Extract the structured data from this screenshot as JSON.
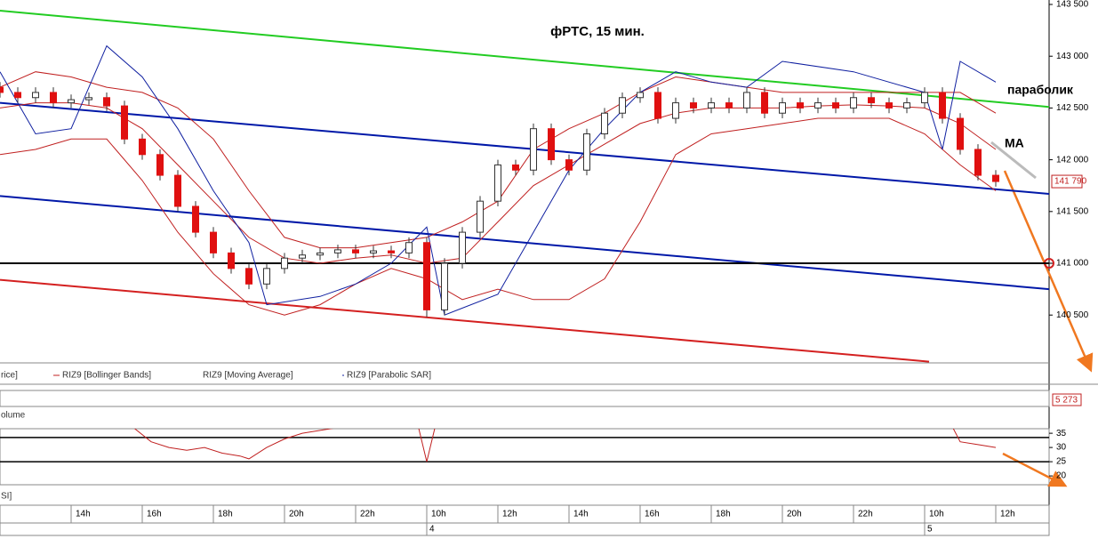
{
  "chart_data": {
    "type": "candlestick",
    "title": "фРТС,  15 мин.",
    "annotations": [
      "параболик",
      "MA"
    ],
    "xlim": [
      0,
      118
    ],
    "ylim": [
      140038,
      143500
    ],
    "yticks": [
      {
        "value": 143500,
        "label": "143 500"
      },
      {
        "value": 143000,
        "label": "143 000"
      },
      {
        "value": 142500,
        "label": "142 500"
      },
      {
        "value": 142000,
        "label": "142 000"
      },
      {
        "value": 141500,
        "label": "141 500"
      },
      {
        "value": 141000,
        "label": "141 000"
      },
      {
        "value": 140500,
        "label": "140 500"
      }
    ],
    "xticks": [
      {
        "value": 8,
        "label": "14h"
      },
      {
        "value": 16,
        "label": "16h"
      },
      {
        "value": 24,
        "label": "18h"
      },
      {
        "value": 32,
        "label": "20h"
      },
      {
        "value": 40,
        "label": "22h"
      },
      {
        "value": 48,
        "label": "10h"
      },
      {
        "value": 56,
        "label": "12h"
      },
      {
        "value": 64,
        "label": "14h"
      },
      {
        "value": 72,
        "label": "16h"
      },
      {
        "value": 80,
        "label": "18h"
      },
      {
        "value": 88,
        "label": "20h"
      },
      {
        "value": 96,
        "label": "22h"
      },
      {
        "value": 104,
        "label": "10h"
      },
      {
        "value": 112,
        "label": "12h"
      }
    ],
    "date_ticks": [
      {
        "value": 48,
        "label": "4"
      },
      {
        "value": 104,
        "label": "5"
      }
    ],
    "candles": {
      "x": [
        0,
        2,
        4,
        6,
        8,
        10,
        12,
        14,
        16,
        18,
        20,
        22,
        24,
        26,
        28,
        30,
        32,
        34,
        36,
        38,
        40,
        42,
        44,
        46,
        48,
        50,
        52,
        54,
        56,
        58,
        60,
        62,
        64,
        66,
        68,
        70,
        72,
        74,
        76,
        78,
        80,
        82,
        84,
        86,
        88,
        90,
        92,
        94,
        96,
        98,
        100,
        102,
        104,
        106,
        108,
        110,
        112
      ],
      "open": [
        142700,
        142650,
        142600,
        142650,
        142550,
        142580,
        142600,
        142520,
        142200,
        142050,
        141850,
        141550,
        141300,
        141100,
        140950,
        140800,
        140950,
        141050,
        141080,
        141100,
        141130,
        141100,
        141120,
        141100,
        141200,
        140550,
        141000,
        141300,
        141600,
        141950,
        141900,
        142300,
        142000,
        141900,
        142250,
        142450,
        142600,
        142650,
        142400,
        142550,
        142500,
        142550,
        142500,
        142650,
        142450,
        142550,
        142500,
        142550,
        142500,
        142600,
        142550,
        142500,
        142550,
        142650,
        142400,
        142100,
        141850
      ],
      "high": [
        142750,
        142700,
        142700,
        142700,
        142630,
        142650,
        142650,
        142570,
        142250,
        142100,
        141900,
        141600,
        141350,
        141150,
        141000,
        141000,
        141100,
        141130,
        141150,
        141180,
        141180,
        141170,
        141170,
        141250,
        141250,
        141050,
        141350,
        141650,
        142000,
        142000,
        142350,
        142350,
        142050,
        142300,
        142500,
        142650,
        142700,
        142700,
        142600,
        142600,
        142600,
        142600,
        142700,
        142700,
        142600,
        142600,
        142600,
        142600,
        142650,
        142650,
        142600,
        142600,
        142700,
        142700,
        142450,
        142150,
        141900
      ],
      "low": [
        142600,
        142550,
        142550,
        142500,
        142500,
        142530,
        142470,
        142150,
        142000,
        141800,
        141500,
        141250,
        141050,
        140900,
        140750,
        140750,
        140900,
        141000,
        141030,
        141050,
        141050,
        141050,
        141050,
        141050,
        140480,
        140500,
        140950,
        141250,
        141550,
        141850,
        141850,
        141950,
        141850,
        141850,
        142200,
        142400,
        142550,
        142350,
        142350,
        142450,
        142450,
        142450,
        142450,
        142400,
        142400,
        142450,
        142450,
        142450,
        142450,
        142500,
        142450,
        142450,
        142500,
        142350,
        142050,
        141800,
        141740
      ],
      "close": [
        142650,
        142600,
        142650,
        142550,
        142580,
        142600,
        142520,
        142200,
        142050,
        141850,
        141550,
        141300,
        141100,
        140950,
        140800,
        140950,
        141050,
        141080,
        141100,
        141130,
        141100,
        141120,
        141100,
        141200,
        140550,
        141000,
        141300,
        141600,
        141950,
        141900,
        142300,
        142000,
        141900,
        142250,
        142450,
        142600,
        142650,
        142400,
        142550,
        142500,
        142550,
        142500,
        142650,
        142450,
        142550,
        142500,
        142550,
        142500,
        142600,
        142550,
        142500,
        142550,
        142650,
        142400,
        142100,
        141850,
        141790
      ],
      "up_color": "#ffffff",
      "down_color": "#e01010"
    },
    "trend_lines": [
      {
        "color": "#22cc22",
        "x": [
          0,
          118
        ],
        "values": [
          143440,
          142510
        ]
      },
      {
        "color": "#0018a8",
        "x": [
          0,
          118
        ],
        "values": [
          142550,
          141670
        ]
      },
      {
        "color": "#0018a8",
        "x": [
          0,
          118
        ],
        "values": [
          141650,
          140750
        ]
      },
      {
        "color": "#d42020",
        "x": [
          0,
          104.5
        ],
        "values": [
          140840,
          140050
        ]
      },
      {
        "color": "#000000",
        "x": [
          0,
          118
        ],
        "values": [
          141000,
          141000
        ]
      }
    ],
    "price_legend": "rice]",
    "series": [
      {
        "name": "RIZ9 [Bollinger Bands]",
        "color": "#c02020",
        "x": [
          0,
          4,
          8,
          12,
          16,
          20,
          24,
          28,
          32,
          36,
          40,
          44,
          48,
          52,
          56,
          60,
          64,
          68,
          72,
          76,
          80,
          84,
          88,
          92,
          96,
          100,
          104,
          108,
          112
        ],
        "upper": [
          142700,
          142850,
          142800,
          142700,
          142650,
          142500,
          142200,
          141700,
          141250,
          141150,
          141150,
          141200,
          141250,
          141400,
          141600,
          142100,
          142300,
          142450,
          142650,
          142800,
          142750,
          142700,
          142650,
          142650,
          142650,
          142650,
          142650,
          142650,
          142450
        ],
        "lower": [
          142050,
          142100,
          142200,
          142200,
          141800,
          141300,
          140900,
          140600,
          140500,
          140600,
          140800,
          140950,
          140850,
          140650,
          140750,
          140650,
          140650,
          140850,
          141400,
          142050,
          142250,
          142300,
          142350,
          142400,
          142400,
          142400,
          142250,
          141950,
          141700
        ]
      },
      {
        "name": "RIZ9 [Moving Average]",
        "color": "#c02020",
        "x": [
          0,
          4,
          8,
          12,
          16,
          20,
          24,
          28,
          32,
          36,
          40,
          44,
          48,
          52,
          56,
          60,
          64,
          68,
          72,
          76,
          80,
          84,
          88,
          92,
          96,
          100,
          104,
          108,
          112
        ],
        "values": [
          142500,
          142550,
          142550,
          142500,
          142300,
          141950,
          141600,
          141250,
          141050,
          141000,
          141050,
          141080,
          141000,
          141050,
          141400,
          141750,
          141950,
          142150,
          142350,
          142450,
          142500,
          142500,
          142500,
          142520,
          142530,
          142520,
          142500,
          142350,
          142100
        ]
      },
      {
        "name": "RIZ9 [Parabolic SAR]",
        "color": "#1020a0",
        "x": [
          0,
          4,
          8,
          12,
          16,
          20,
          24,
          28,
          30,
          36,
          40,
          44,
          48,
          50,
          56,
          60,
          64,
          68,
          72,
          76,
          80,
          84,
          88,
          96,
          104,
          106,
          108,
          112
        ],
        "values": [
          142850,
          142250,
          142300,
          143100,
          142800,
          142300,
          141700,
          141200,
          140600,
          140680,
          140800,
          141000,
          141350,
          140500,
          140700,
          141300,
          141900,
          142300,
          142650,
          142850,
          142750,
          142700,
          142950,
          142850,
          142650,
          142100,
          142950,
          142750
        ]
      }
    ],
    "last_price": {
      "value": 141790,
      "label": "141 790"
    },
    "volume": {
      "label": "olume",
      "last": {
        "value": 5273,
        "label": "5 273"
      }
    },
    "rsi": {
      "label": "SI]",
      "color": "#c02020",
      "ylim": [
        16.9,
        36.6
      ],
      "yticks": [
        35,
        30,
        25,
        20
      ],
      "levels": [
        33.5,
        25
      ],
      "x": [
        15,
        17,
        19,
        21,
        23,
        25,
        27,
        28,
        30,
        32,
        34,
        36,
        40,
        47,
        48,
        49,
        60,
        107,
        108,
        110,
        112
      ],
      "values": [
        37,
        32,
        30,
        29,
        30,
        28,
        27,
        26,
        30,
        33,
        35,
        36,
        38,
        38,
        25,
        38,
        38,
        38,
        32,
        31,
        30
      ]
    }
  }
}
